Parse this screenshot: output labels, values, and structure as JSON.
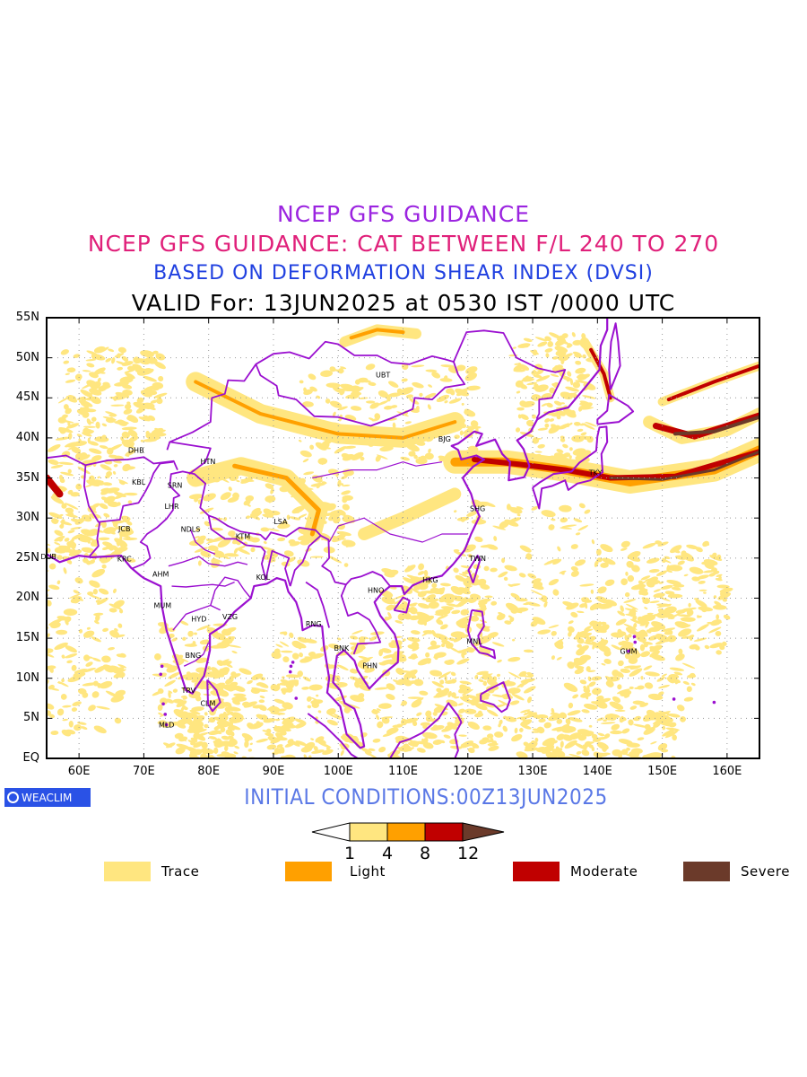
{
  "title_line1": "NCEP GFS GUIDANCE",
  "title_line2": "NCEP GFS GUIDANCE: CAT BETWEEN F/L 240 TO 270",
  "title_line3": "BASED ON DEFORMATION SHEAR INDEX (DVSI)",
  "title_line4": "VALID For: 13JUN2025 at 0530 IST /0000 UTC",
  "initial_conditions": "INITIAL CONDITIONS:00Z13JUN2025",
  "logo_text": "WEACLIM",
  "lat_labels": [
    "55N",
    "50N",
    "45N",
    "40N",
    "35N",
    "30N",
    "25N",
    "20N",
    "15N",
    "10N",
    "5N",
    "EQ"
  ],
  "lon_labels": [
    "60E",
    "70E",
    "80E",
    "90E",
    "100E",
    "110E",
    "120E",
    "130E",
    "140E",
    "150E",
    "160E"
  ],
  "stations": [
    {
      "name": "UBT",
      "lon": 106.9,
      "lat": 47.9
    },
    {
      "name": "BJG",
      "lon": 116.4,
      "lat": 39.9
    },
    {
      "name": "DHB",
      "lon": 68.8,
      "lat": 38.5
    },
    {
      "name": "HTN",
      "lon": 79.9,
      "lat": 37.1
    },
    {
      "name": "KBL",
      "lon": 69.2,
      "lat": 34.5
    },
    {
      "name": "SRN",
      "lon": 74.8,
      "lat": 34.1
    },
    {
      "name": "LHR",
      "lon": 74.3,
      "lat": 31.5
    },
    {
      "name": "LSA",
      "lon": 91.1,
      "lat": 29.6
    },
    {
      "name": "SHG",
      "lon": 121.5,
      "lat": 31.2
    },
    {
      "name": "TKY",
      "lon": 139.7,
      "lat": 35.7
    },
    {
      "name": "JCB",
      "lon": 67.0,
      "lat": 28.7
    },
    {
      "name": "NDLS",
      "lon": 77.2,
      "lat": 28.6
    },
    {
      "name": "KTM",
      "lon": 85.3,
      "lat": 27.7
    },
    {
      "name": "DUB",
      "lon": 55.3,
      "lat": 25.2
    },
    {
      "name": "KRC",
      "lon": 67.0,
      "lat": 24.9
    },
    {
      "name": "TWN",
      "lon": 121.5,
      "lat": 25.0
    },
    {
      "name": "AHM",
      "lon": 72.6,
      "lat": 23.0
    },
    {
      "name": "KOL",
      "lon": 88.4,
      "lat": 22.6
    },
    {
      "name": "HKG",
      "lon": 114.2,
      "lat": 22.3
    },
    {
      "name": "HNO",
      "lon": 105.8,
      "lat": 21.0
    },
    {
      "name": "MUM",
      "lon": 72.9,
      "lat": 19.1
    },
    {
      "name": "HYD",
      "lon": 78.5,
      "lat": 17.4
    },
    {
      "name": "VZG",
      "lon": 83.3,
      "lat": 17.7
    },
    {
      "name": "RNG",
      "lon": 96.2,
      "lat": 16.8
    },
    {
      "name": "BNK",
      "lon": 100.5,
      "lat": 13.8
    },
    {
      "name": "MNL",
      "lon": 121.0,
      "lat": 14.6
    },
    {
      "name": "GUM",
      "lon": 144.8,
      "lat": 13.4
    },
    {
      "name": "BNG",
      "lon": 77.6,
      "lat": 12.9
    },
    {
      "name": "PHN",
      "lon": 104.9,
      "lat": 11.6
    },
    {
      "name": "TRV",
      "lon": 76.9,
      "lat": 8.5
    },
    {
      "name": "CLM",
      "lon": 79.9,
      "lat": 6.9
    },
    {
      "name": "MLD",
      "lon": 73.5,
      "lat": 4.2
    }
  ],
  "scale_ticks": [
    "1",
    "4",
    "8",
    "12"
  ],
  "scale_colors": [
    "#ffe680",
    "#ffa000",
    "#c00000",
    "#6b3a2a"
  ],
  "legend": [
    {
      "label": "Trace",
      "color": "#ffe680"
    },
    {
      "label": "Light",
      "color": "#ffa000"
    },
    {
      "label": "Moderate",
      "color": "#c00000"
    },
    {
      "label": "Severe",
      "color": "#6b3a2a"
    }
  ],
  "colors": {
    "coast": "#9b10d0",
    "title1": "#9b24e0",
    "title2": "#e0207a",
    "title3": "#2040e0",
    "init": "#5a78e6"
  }
}
